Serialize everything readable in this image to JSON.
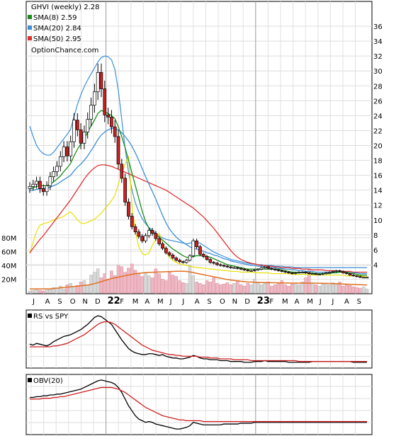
{
  "chart_data": [
    {
      "type": "candlestick",
      "title": "GHVI (weekly) 2.28",
      "source": "OptionChance.com",
      "legend": [
        {
          "label": "SMA(8) 2.59",
          "color": "#1a8c1a"
        },
        {
          "label": "SMA(20) 2.84",
          "color": "#3b8fd6"
        },
        {
          "label": "SMA(50) 2.95",
          "color": "#e03030"
        }
      ],
      "x_ticks": [
        "J",
        "A",
        "S",
        "O",
        "N",
        "D",
        "22",
        "F",
        "M",
        "A",
        "M",
        "J",
        "J",
        "A",
        "S",
        "O",
        "N",
        "D",
        "23",
        "F",
        "M",
        "A",
        "M",
        "J",
        "J",
        "A",
        "S"
      ],
      "y_ticks": [
        4,
        6,
        8,
        10,
        12,
        14,
        16,
        18,
        20,
        22,
        24,
        26,
        28,
        30,
        32,
        34,
        36
      ],
      "ylim": [
        2,
        38
      ],
      "close": [
        14.5,
        14.8,
        15.2,
        14.2,
        13.8,
        14.6,
        15.8,
        16.5,
        17.2,
        18.5,
        19.8,
        18.6,
        20.5,
        23.4,
        22.1,
        20.3,
        21.8,
        23.5,
        25.4,
        27.2,
        29.8,
        27.6,
        24.1,
        23.8,
        22.5,
        21.2,
        17.5,
        15.6,
        12.4,
        10.5,
        9.1,
        8.4,
        7.8,
        7.2,
        7.9,
        8.6,
        8.2,
        7.5,
        6.8,
        6.2,
        5.6,
        5.3,
        4.9,
        4.6,
        4.4,
        4.3,
        4.6,
        5.2,
        7.2,
        6.4,
        5.4,
        5.1,
        4.7,
        4.3,
        4.2,
        4.0,
        3.9,
        3.8,
        3.7,
        3.6,
        3.6,
        3.5,
        3.4,
        3.3,
        3.2,
        3.2,
        3.3,
        3.4,
        3.6,
        3.7,
        3.5,
        3.4,
        3.3,
        3.2,
        3.1,
        3.0,
        2.9,
        2.8,
        2.9,
        3.0,
        3.0,
        2.9,
        2.8,
        2.8,
        2.7,
        2.7,
        2.8,
        2.9,
        3.0,
        3.1,
        3.2,
        3.1,
        2.9,
        2.8,
        2.6,
        2.5,
        2.4,
        2.3,
        2.3,
        2.3
      ],
      "sma8": [
        14.2,
        14.3,
        14.5,
        14.6,
        14.6,
        14.6,
        14.8,
        15.1,
        15.5,
        15.9,
        16.5,
        17.0,
        17.6,
        18.6,
        19.5,
        20.2,
        20.9,
        21.8,
        22.6,
        23.4,
        24.3,
        24.7,
        24.5,
        24.3,
        24.0,
        23.6,
        22.5,
        21.2,
        19.7,
        18.0,
        16.3,
        14.6,
        12.9,
        11.2,
        9.8,
        8.9,
        8.3,
        8.0,
        7.7,
        7.3,
        6.9,
        6.5,
        6.1,
        5.8,
        5.5,
        5.2,
        5.0,
        4.9,
        5.1,
        5.2,
        5.2,
        5.2,
        5.1,
        5.0,
        4.8,
        4.6,
        4.4,
        4.2,
        4.0,
        3.9,
        3.8,
        3.7,
        3.6,
        3.5,
        3.4,
        3.4,
        3.4,
        3.4,
        3.4,
        3.4,
        3.4,
        3.4,
        3.4,
        3.4,
        3.3,
        3.2,
        3.1,
        3.0,
        3.0,
        2.9,
        2.9,
        2.9,
        2.9,
        2.9,
        2.8,
        2.8,
        2.8,
        2.8,
        2.8,
        2.9,
        2.9,
        3.0,
        3.0,
        3.0,
        2.9,
        2.8,
        2.7,
        2.6,
        2.6,
        2.6
      ],
      "sma20": [
        14.0,
        14.0,
        14.1,
        14.2,
        14.2,
        14.3,
        14.4,
        14.6,
        14.8,
        15.1,
        15.4,
        15.7,
        16.0,
        16.6,
        17.1,
        17.5,
        18.0,
        18.6,
        19.3,
        20.0,
        20.8,
        21.4,
        21.8,
        22.1,
        22.3,
        22.3,
        22.1,
        21.7,
        21.2,
        20.6,
        19.9,
        19.0,
        18.0,
        16.9,
        15.8,
        14.8,
        13.8,
        12.8,
        11.7,
        10.6,
        9.6,
        8.8,
        8.2,
        7.7,
        7.3,
        7.0,
        6.7,
        6.4,
        6.2,
        6.1,
        5.9,
        5.8,
        5.6,
        5.5,
        5.3,
        5.2,
        5.0,
        4.8,
        4.7,
        4.5,
        4.4,
        4.3,
        4.2,
        4.1,
        4.0,
        3.9,
        3.9,
        3.8,
        3.8,
        3.7,
        3.7,
        3.6,
        3.6,
        3.5,
        3.5,
        3.4,
        3.4,
        3.3,
        3.3,
        3.2,
        3.2,
        3.1,
        3.1,
        3.1,
        3.0,
        3.0,
        3.0,
        3.0,
        3.0,
        3.0,
        3.0,
        3.0,
        3.0,
        3.0,
        2.9,
        2.9,
        2.9,
        2.8,
        2.8,
        2.8
      ],
      "sma50": [
        5.6,
        6.2,
        6.8,
        7.4,
        7.9,
        8.5,
        9.1,
        9.7,
        10.3,
        10.9,
        11.5,
        12.1,
        12.7,
        13.4,
        14.1,
        14.8,
        15.5,
        16.1,
        16.6,
        17.0,
        17.3,
        17.4,
        17.4,
        17.3,
        17.2,
        17.0,
        16.8,
        16.6,
        16.4,
        16.2,
        16.0,
        15.8,
        15.6,
        15.4,
        15.2,
        15.0,
        14.8,
        14.6,
        14.4,
        14.2,
        14.0,
        13.7,
        13.4,
        13.1,
        12.8,
        12.5,
        12.2,
        11.9,
        11.6,
        11.2,
        10.8,
        10.4,
        9.9,
        9.4,
        8.9,
        8.3,
        7.7,
        7.1,
        6.5,
        5.9,
        5.4,
        5.0,
        4.7,
        4.5,
        4.3,
        4.2,
        4.1,
        4.0,
        3.9,
        3.9,
        3.8,
        3.8,
        3.7,
        3.7,
        3.6,
        3.6,
        3.6,
        3.5,
        3.5,
        3.5,
        3.4,
        3.4,
        3.4,
        3.3,
        3.3,
        3.3,
        3.3,
        3.2,
        3.2,
        3.2,
        3.2,
        3.1,
        3.1,
        3.1,
        3.1,
        3.0,
        3.0,
        3.0,
        3.0,
        3.0
      ],
      "bb_upper": [
        22.6,
        21.2,
        20.0,
        19.3,
        18.9,
        18.7,
        18.7,
        19.1,
        19.7,
        20.3,
        20.9,
        21.5,
        22.2,
        23.9,
        25.5,
        26.8,
        27.9,
        28.8,
        29.6,
        30.4,
        31.2,
        31.8,
        32.0,
        31.9,
        31.5,
        30.2,
        27.4,
        23.5,
        19.6,
        16.4,
        14.0,
        12.3,
        11.1,
        10.2,
        9.5,
        9.0,
        8.6,
        8.2,
        7.9,
        7.6,
        7.4,
        7.3,
        7.2,
        7.1,
        7.0,
        6.9,
        6.8,
        6.9,
        7.0,
        7.0,
        6.9,
        6.6,
        6.3,
        6.0,
        5.7,
        5.5,
        5.3,
        5.1,
        4.9,
        4.7,
        4.6,
        4.5,
        4.4,
        4.3,
        4.2,
        4.1,
        4.1,
        4.0,
        4.0,
        3.9,
        3.9,
        3.9,
        3.8,
        3.8,
        3.8,
        3.7,
        3.7,
        3.7,
        3.6,
        3.6,
        3.6,
        3.6,
        3.6,
        3.6,
        3.6,
        3.6,
        3.6,
        3.6,
        3.6,
        3.6,
        3.6,
        3.6,
        3.6,
        3.6,
        3.6,
        3.6,
        3.6,
        3.6,
        3.6,
        3.6
      ],
      "bb_lower": [
        5.5,
        7.0,
        8.5,
        9.3,
        9.5,
        9.6,
        9.8,
        10.0,
        10.2,
        10.3,
        10.5,
        10.8,
        11.1,
        10.6,
        10.0,
        9.6,
        9.5,
        9.7,
        9.9,
        10.1,
        10.5,
        10.9,
        11.5,
        12.0,
        12.6,
        13.3,
        14.8,
        16.2,
        17.5,
        18.6,
        12.0,
        8.5,
        6.4,
        5.5,
        5.3,
        5.6,
        6.6,
        7.4,
        8.2,
        6.8,
        5.8,
        5.0,
        4.6,
        4.3,
        4.1,
        4.0,
        3.9,
        3.8,
        3.7,
        3.6,
        3.6,
        3.5,
        3.5,
        3.4,
        3.4,
        3.3,
        3.3,
        3.2,
        3.2,
        3.1,
        3.1,
        3.1,
        3.0,
        3.0,
        3.0,
        3.0,
        2.9,
        2.9,
        2.9,
        2.9,
        2.9,
        2.8,
        2.8,
        2.8,
        2.8,
        2.8,
        2.8,
        2.7,
        2.7,
        2.7,
        2.7,
        2.7,
        2.7,
        2.6,
        2.6,
        2.6,
        2.6,
        2.6,
        2.6,
        2.6,
        2.6,
        2.6,
        2.6,
        2.5,
        2.5,
        2.5,
        2.5,
        2.5,
        2.4,
        2.4
      ]
    },
    {
      "type": "bar",
      "name": "volume",
      "y_ticks": [
        "20M",
        "40M",
        "60M",
        "80M"
      ],
      "ylim": [
        0,
        90
      ],
      "volume": [
        3,
        4,
        5,
        4,
        3,
        6,
        5,
        8,
        7,
        10,
        6,
        12,
        14,
        9,
        11,
        16,
        18,
        12,
        26,
        30,
        35,
        22,
        28,
        20,
        32,
        25,
        40,
        38,
        30,
        36,
        42,
        33,
        28,
        24,
        30,
        25,
        22,
        35,
        28,
        20,
        18,
        30,
        26,
        24,
        18,
        15,
        14,
        40,
        25,
        16,
        14,
        12,
        18,
        16,
        22,
        14,
        12,
        13,
        15,
        12,
        14,
        18,
        12,
        10,
        14,
        12,
        20,
        16,
        12,
        14,
        16,
        10,
        12,
        14,
        18,
        12,
        10,
        13,
        14,
        12,
        16,
        22,
        34,
        14,
        12,
        10,
        13,
        14,
        12,
        15,
        14,
        16,
        10,
        12,
        11,
        9,
        8,
        7,
        9,
        6
      ],
      "volume_sma": [
        6,
        6,
        6,
        6,
        6,
        6,
        6,
        6.5,
        7,
        7.5,
        8,
        8.5,
        9,
        9.5,
        10,
        10.5,
        11,
        11.5,
        12.5,
        13.5,
        15,
        16.5,
        18,
        19.5,
        21,
        22,
        23,
        24,
        25,
        26,
        27,
        28,
        28.5,
        29,
        29.5,
        29.8,
        30,
        30.2,
        30.4,
        30.6,
        30.8,
        31,
        31.2,
        31.4,
        31.5,
        31.5,
        31.2,
        30.5,
        29.5,
        28.5,
        27.5,
        26.5,
        25.5,
        24.5,
        23.5,
        22.5,
        21.5,
        20.5,
        19.5,
        18.8,
        18.2,
        17.6,
        17,
        16.5,
        16,
        15.8,
        15.6,
        15.4,
        15.2,
        15.1,
        15,
        14.9,
        14.8,
        14.7,
        14.6,
        14.5,
        14.4,
        14.3,
        14.3,
        14.3,
        14.3,
        14.3,
        14.3,
        14.3,
        14.2,
        14.1,
        14,
        13.9,
        13.8,
        13.6,
        13.4,
        13.2,
        13,
        12.8,
        12.6,
        12.4,
        12.2,
        12.0,
        11.8,
        11.6
      ]
    },
    {
      "type": "line",
      "title": "RS vs SPY",
      "series": [
        {
          "name": "RS vs SPY",
          "color": "#000000",
          "values": [
            47,
            46,
            48,
            47,
            46,
            45,
            47,
            50,
            52,
            54,
            56,
            57,
            58,
            60,
            62,
            64,
            67,
            70,
            74,
            78,
            80,
            79,
            76,
            73,
            70,
            64,
            58,
            52,
            47,
            42,
            39,
            37,
            36,
            35,
            35,
            36,
            36,
            35,
            34,
            35,
            33,
            32,
            31,
            31,
            30,
            30,
            31,
            32,
            34,
            33,
            31,
            30,
            30,
            29,
            29,
            29,
            28,
            28,
            28,
            27,
            27,
            27,
            27,
            26,
            26,
            26,
            27,
            27,
            27,
            28,
            27,
            27,
            27,
            27,
            27,
            27,
            26,
            26,
            26,
            26,
            26,
            26,
            26,
            27,
            27,
            27,
            27,
            27,
            27,
            27,
            27,
            27,
            27,
            27,
            27,
            26,
            26,
            26,
            26,
            26
          ]
        },
        {
          "name": "",
          "color": "#d02020",
          "values": [
            44,
            44,
            44,
            44,
            44,
            44,
            44,
            45,
            45,
            46,
            47,
            48,
            50,
            52,
            54,
            56,
            58,
            61,
            64,
            67,
            70,
            72,
            73,
            73,
            72,
            70,
            67,
            64,
            61,
            58,
            55,
            52,
            49,
            46,
            44,
            42,
            40,
            39,
            38,
            37,
            36,
            35,
            35,
            34,
            34,
            33,
            33,
            33,
            33,
            33,
            32,
            32,
            32,
            31,
            31,
            31,
            30,
            30,
            30,
            30,
            29,
            29,
            29,
            29,
            29,
            28,
            28,
            28,
            28,
            28,
            28,
            28,
            28,
            28,
            28,
            28,
            28,
            28,
            28,
            27,
            27,
            27,
            27,
            27,
            27,
            27,
            27,
            27,
            27,
            27,
            27,
            27,
            27,
            27,
            27,
            27,
            27,
            27,
            27,
            27
          ]
        }
      ]
    },
    {
      "type": "line",
      "title": "OBV(20)",
      "series": [
        {
          "name": "OBV(20)",
          "color": "#000000",
          "values": [
            60,
            60,
            61,
            61,
            62,
            62,
            63,
            63,
            64,
            64,
            65,
            66,
            67,
            68,
            69,
            70,
            72,
            74,
            76,
            78,
            80,
            81,
            80,
            79,
            78,
            76,
            72,
            66,
            58,
            50,
            44,
            38,
            34,
            32,
            30,
            31,
            30,
            28,
            27,
            26,
            25,
            24,
            23,
            22,
            22,
            23,
            24,
            26,
            30,
            29,
            28,
            27,
            27,
            27,
            27,
            27,
            27,
            28,
            28,
            28,
            28,
            28,
            29,
            29,
            29,
            29,
            30,
            30,
            30,
            30,
            30,
            30,
            30,
            30,
            30,
            30,
            30,
            30,
            30,
            30,
            30,
            30,
            30,
            30,
            30,
            30,
            30,
            30,
            30,
            30,
            30,
            30,
            30,
            30,
            30,
            30,
            30,
            30,
            30,
            30
          ]
        },
        {
          "name": "",
          "color": "#d02020",
          "values": [
            58,
            58,
            58,
            58,
            59,
            59,
            59,
            60,
            60,
            61,
            61,
            62,
            63,
            64,
            65,
            66,
            67,
            68,
            69,
            70,
            71,
            72,
            72,
            72,
            72,
            71,
            70,
            68,
            66,
            63,
            60,
            57,
            54,
            51,
            48,
            46,
            44,
            42,
            40,
            38,
            37,
            36,
            35,
            34,
            33,
            33,
            32,
            32,
            32,
            32,
            32,
            31,
            31,
            31,
            31,
            31,
            31,
            31,
            31,
            31,
            31,
            31,
            31,
            31,
            31,
            31,
            31,
            31,
            31,
            31,
            31,
            31,
            31,
            31,
            31,
            31,
            31,
            31,
            31,
            31,
            31,
            31,
            31,
            31,
            31,
            31,
            31,
            31,
            31,
            31,
            31,
            31,
            31,
            31,
            31,
            31,
            31,
            31,
            31,
            31
          ]
        }
      ]
    }
  ]
}
